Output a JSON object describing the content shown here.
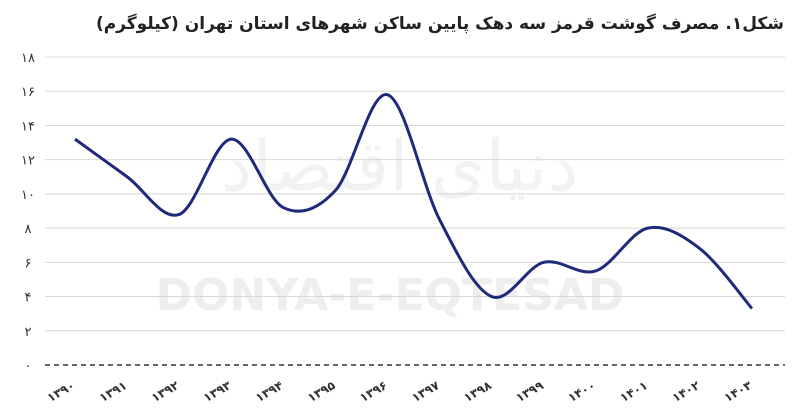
{
  "chart_data": {
    "type": "line",
    "title": "شکل۱. مصرف گوشت قرمز سه دهک پایین ساکن شهرهای استان تهران (کیلوگرم)",
    "watermark": "DONYA-E-EQTESAD",
    "watermark_fa": "دنیای اقتصاد",
    "categories": [
      "۱۳۹۰",
      "۱۳۹۱",
      "۱۳۹۲",
      "۱۳۹۳",
      "۱۳۹۴",
      "۱۳۹۵",
      "۱۳۹۶",
      "۱۳۹۷",
      "۱۳۹۸",
      "۱۳۹۹",
      "۱۴۰۰",
      "۱۴۰۱",
      "۱۴۰۲",
      "۱۴۰۳"
    ],
    "values": [
      13.2,
      11,
      8.8,
      13.2,
      9.2,
      10.2,
      15.8,
      8.5,
      4,
      6,
      5.5,
      8,
      6.8,
      3.3
    ],
    "color": "#1f2a7a",
    "ylim": [
      0,
      18
    ],
    "yticks": [
      {
        "value": 0,
        "label": "۰"
      },
      {
        "value": 2,
        "label": "۲"
      },
      {
        "value": 4,
        "label": "۴"
      },
      {
        "value": 6,
        "label": "۶"
      },
      {
        "value": 8,
        "label": "۸"
      },
      {
        "value": 10,
        "label": "۱۰"
      },
      {
        "value": 12,
        "label": "۱۲"
      },
      {
        "value": 14,
        "label": "۱۴"
      },
      {
        "value": 16,
        "label": "۱۶"
      },
      {
        "value": 18,
        "label": "۱۸"
      }
    ],
    "grid": true
  }
}
